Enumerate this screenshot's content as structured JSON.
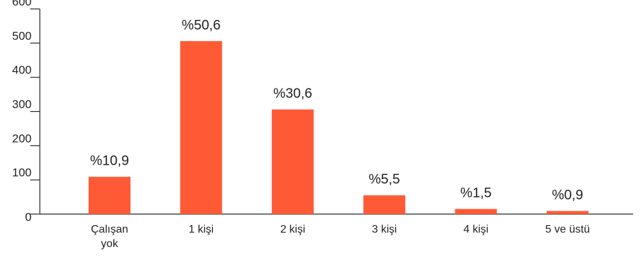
{
  "chart_data": {
    "type": "bar",
    "categories": [
      [
        "Çalışan",
        "yok"
      ],
      [
        "1 kişi"
      ],
      [
        "2 kişi"
      ],
      [
        "3 kişi"
      ],
      [
        "4 kişi"
      ],
      [
        "5 ve üstü"
      ]
    ],
    "values": [
      109,
      506,
      306,
      55,
      15,
      9
    ],
    "data_labels": [
      "%10,9",
      "%50,6",
      "%30,6",
      "%5,5",
      "%1,5",
      "%0,9"
    ],
    "y_ticks": [
      "0",
      "100",
      "200",
      "300",
      "400",
      "500",
      "600"
    ],
    "ylim": [
      0,
      600
    ],
    "title": "",
    "xlabel": "",
    "ylabel": "",
    "grid": false,
    "bar_color": "#ff5a36"
  }
}
